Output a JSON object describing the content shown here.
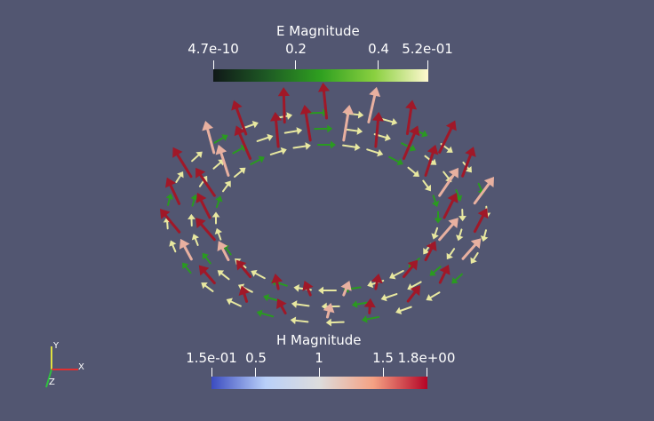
{
  "e_bar": {
    "title": "E Magnitude",
    "ticks": [
      "4.7e-10",
      "0.2",
      "0.4",
      "5.2e-01"
    ],
    "colors": [
      "#101818",
      "#1e5a24",
      "#2fa020",
      "#8ad040",
      "#fff8d0"
    ]
  },
  "h_bar": {
    "title": "H Magnitude",
    "ticks": [
      "1.5e-01",
      "0.5",
      "1",
      "1.5",
      "1.8e+00"
    ],
    "colors": [
      "#3b4cc0",
      "#b9d0f9",
      "#dddcdc",
      "#f5a183",
      "#b40426"
    ]
  },
  "axes": {
    "x": "X",
    "y": "Y",
    "z": "Z",
    "x_color": "#e03030",
    "y_color": "#e0e040",
    "z_color": "#30c040"
  },
  "scene": {
    "h_arrow_color": "#a01828",
    "h_arrow_light": "#e8b0a0",
    "e_arrow_color": "#e8e8a0",
    "e_arrow_green": "#2a9a20"
  }
}
